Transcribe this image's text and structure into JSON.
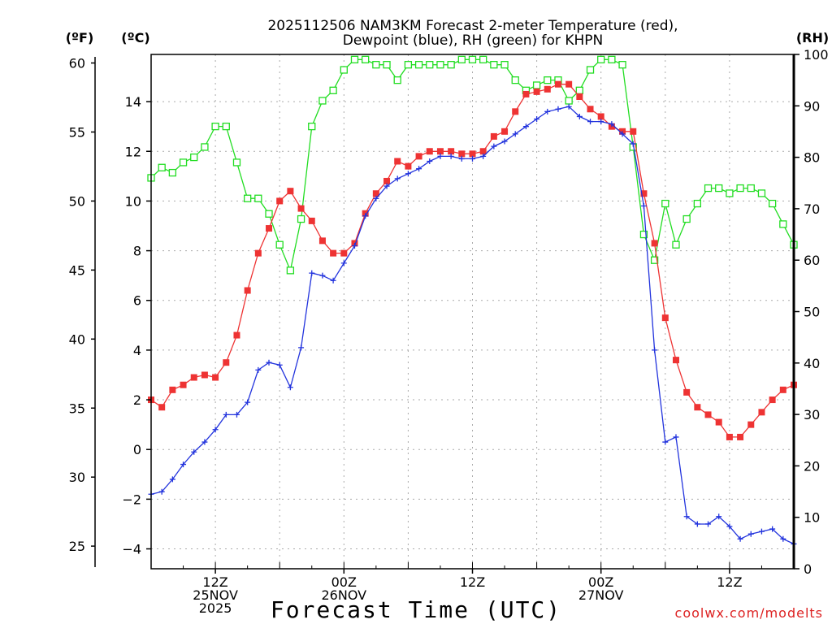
{
  "chart_data": {
    "type": "line",
    "title_line1": "2025112506 NAM3KM Forecast 2-meter Temperature (red),",
    "title_line2": "Dewpoint (blue), RH (green) for KHPN",
    "xlabel": "Forecast Time (UTC)",
    "unit_f": "(ºF)",
    "unit_c": "(ºC)",
    "unit_rh": "(RH)",
    "credit": "coolwx.com/modelts",
    "colors": {
      "temperature": "#ee3333",
      "dewpoint": "#2233dd",
      "rh": "#22dd22",
      "grid": "#aaaaaa",
      "credit": "#dd2222"
    },
    "x_range_hours": [
      0,
      60
    ],
    "ylim_c": [
      -4.8,
      15.9
    ],
    "ylim_rh": [
      0,
      100
    ],
    "f_ticks": [
      25,
      30,
      35,
      40,
      45,
      50,
      55,
      60
    ],
    "c_ticks": [
      -4,
      -2,
      0,
      2,
      4,
      6,
      8,
      10,
      12,
      14
    ],
    "rh_ticks": [
      0,
      10,
      20,
      30,
      40,
      50,
      60,
      70,
      80,
      90,
      100
    ],
    "x_ticks": [
      {
        "hour": 6,
        "lines": [
          "12Z",
          "25NOV",
          "2025"
        ]
      },
      {
        "hour": 18,
        "lines": [
          "00Z",
          "26NOV"
        ]
      },
      {
        "hour": 30,
        "lines": [
          "12Z"
        ]
      },
      {
        "hour": 42,
        "lines": [
          "00Z",
          "27NOV"
        ]
      },
      {
        "hour": 54,
        "lines": [
          "12Z"
        ]
      }
    ],
    "series": [
      {
        "name": "Temperature",
        "unit": "C",
        "key": "temperature",
        "values": [
          2.0,
          1.7,
          2.4,
          2.6,
          2.9,
          3.0,
          2.9,
          3.5,
          4.6,
          6.4,
          7.9,
          8.9,
          10.0,
          10.4,
          9.7,
          9.2,
          8.4,
          7.9,
          7.9,
          8.3,
          9.5,
          10.3,
          10.8,
          11.6,
          11.4,
          11.8,
          12.0,
          12.0,
          12.0,
          11.9,
          11.9,
          12.0,
          12.6,
          12.8,
          13.6,
          14.3,
          14.4,
          14.5,
          14.7,
          14.7,
          14.2,
          13.7,
          13.4,
          13.0,
          12.8,
          12.8,
          10.3,
          8.3,
          5.3,
          3.6,
          2.3,
          1.7,
          1.4,
          1.1,
          0.5,
          0.5,
          1.0,
          1.5,
          2.0,
          2.4,
          2.6
        ]
      },
      {
        "name": "Dewpoint",
        "unit": "C",
        "key": "dewpoint",
        "values": [
          -1.8,
          -1.7,
          -1.2,
          -0.6,
          -0.1,
          0.3,
          0.8,
          1.4,
          1.4,
          1.9,
          3.2,
          3.5,
          3.4,
          2.5,
          4.1,
          7.1,
          7.0,
          6.8,
          7.5,
          8.2,
          9.4,
          10.1,
          10.6,
          10.9,
          11.1,
          11.3,
          11.6,
          11.8,
          11.8,
          11.7,
          11.7,
          11.8,
          12.2,
          12.4,
          12.7,
          13.0,
          13.3,
          13.6,
          13.7,
          13.8,
          13.4,
          13.2,
          13.2,
          13.1,
          12.7,
          12.3,
          9.8,
          4.0,
          0.3,
          0.5,
          -2.7,
          -3.0,
          -3.0,
          -2.7,
          -3.1,
          -3.6,
          -3.4,
          -3.3,
          -3.2,
          -3.6,
          -3.8
        ]
      },
      {
        "name": "RH",
        "unit": "%",
        "key": "rh",
        "values": [
          76,
          78,
          77,
          79,
          80,
          82,
          86,
          86,
          79,
          72,
          72,
          69,
          63,
          58,
          68,
          86,
          91,
          93,
          97,
          99,
          99,
          98,
          98,
          95,
          98,
          98,
          98,
          98,
          98,
          99,
          99,
          99,
          98,
          98,
          95,
          93,
          94,
          95,
          95,
          91,
          93,
          97,
          99,
          99,
          98,
          82,
          65,
          60,
          71,
          63,
          68,
          71,
          74,
          74,
          73,
          74,
          74,
          73,
          71,
          67,
          63
        ]
      }
    ]
  }
}
